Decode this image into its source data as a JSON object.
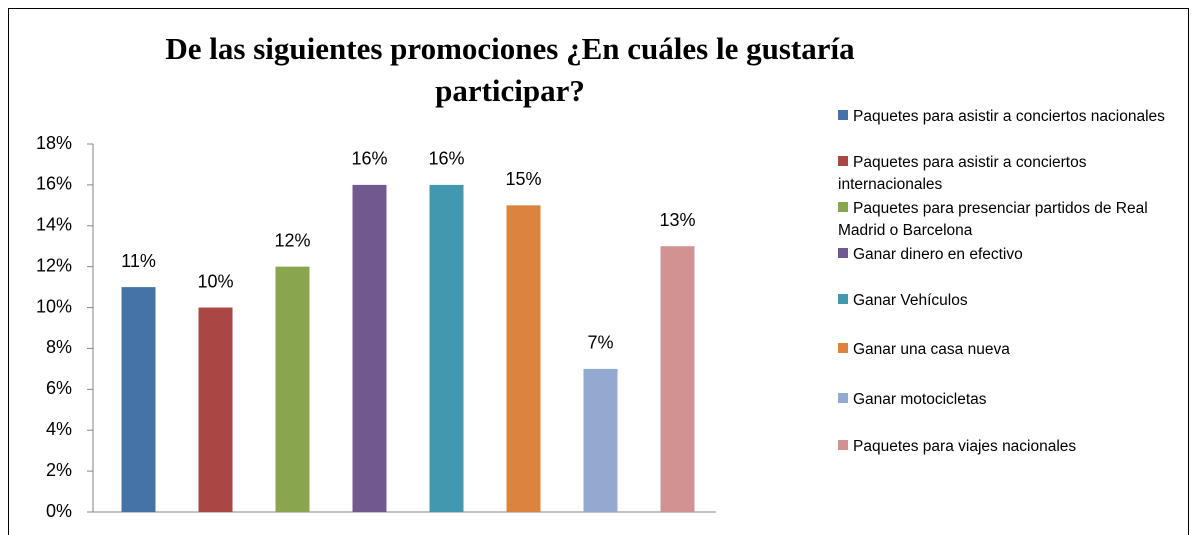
{
  "chart_data": {
    "type": "bar",
    "title": "De las siguientes promociones ¿En cuáles le gustaría participar?",
    "categories": [
      null
    ],
    "series": [
      {
        "name": "Paquetes para asistir a conciertos nacionales",
        "color": "#4572a7",
        "values": [
          11
        ],
        "value_labels": [
          "11%"
        ]
      },
      {
        "name": "Paquetes para asistir a conciertos internacionales",
        "color": "#aa4643",
        "values": [
          10
        ],
        "value_labels": [
          "10%"
        ]
      },
      {
        "name": "Paquetes para presenciar partidos de Real Madrid o Barcelona",
        "color": "#89a54e",
        "values": [
          12
        ],
        "value_labels": [
          "12%"
        ]
      },
      {
        "name": "Ganar dinero en efectivo",
        "color": "#71588f",
        "values": [
          16
        ],
        "value_labels": [
          "16%"
        ]
      },
      {
        "name": "Ganar Vehículos",
        "color": "#4198af",
        "values": [
          16
        ],
        "value_labels": [
          "16%"
        ]
      },
      {
        "name": "Ganar una casa nueva",
        "color": "#db843d",
        "values": [
          15
        ],
        "value_labels": [
          "15%"
        ]
      },
      {
        "name": "Ganar motocicletas",
        "color": "#93a9cf",
        "values": [
          7
        ],
        "value_labels": [
          "7%"
        ]
      },
      {
        "name": "Paquetes para viajes nacionales",
        "color": "#d19392",
        "values": [
          13
        ],
        "value_labels": [
          "13%"
        ]
      }
    ],
    "ylim": [
      0,
      18
    ],
    "yticks": [
      {
        "value": 0,
        "label": "0%"
      },
      {
        "value": 2,
        "label": "2%"
      },
      {
        "value": 4,
        "label": "4%"
      },
      {
        "value": 6,
        "label": "6%"
      },
      {
        "value": 8,
        "label": "8%"
      },
      {
        "value": 10,
        "label": "10%"
      },
      {
        "value": 12,
        "label": "12%"
      },
      {
        "value": 14,
        "label": "14%"
      },
      {
        "value": 16,
        "label": "16%"
      },
      {
        "value": 18,
        "label": "18%"
      }
    ],
    "legend": "right"
  }
}
